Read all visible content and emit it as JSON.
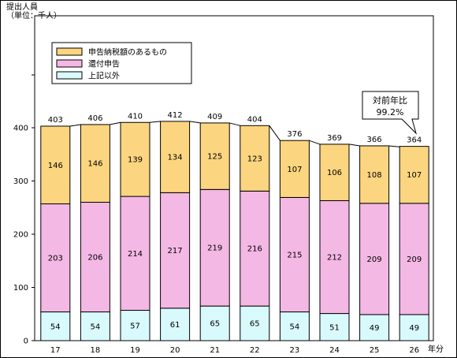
{
  "chart_data": {
    "type": "bar",
    "stacked": true,
    "ylabel_line1": "提出人員",
    "ylabel_line2": "（単位：千人）",
    "xunit": "年分",
    "ylim": [
      0,
      450
    ],
    "yticks": [
      0,
      100,
      200,
      300,
      400
    ],
    "categories": [
      "17",
      "18",
      "19",
      "20",
      "21",
      "22",
      "23",
      "24",
      "25",
      "26"
    ],
    "series": [
      {
        "name": "上記以外",
        "color": "#d9fafc",
        "values": [
          54,
          54,
          57,
          61,
          65,
          65,
          54,
          51,
          49,
          49
        ]
      },
      {
        "name": "還付申告",
        "color": "#f4b8e4",
        "values": [
          203,
          206,
          214,
          217,
          219,
          216,
          215,
          212,
          209,
          209
        ]
      },
      {
        "name": "申告納税額のあるもの",
        "color": "#fbd580",
        "values": [
          146,
          146,
          139,
          134,
          125,
          123,
          107,
          106,
          108,
          107
        ]
      }
    ],
    "totals": [
      403,
      406,
      410,
      412,
      409,
      404,
      376,
      369,
      366,
      364
    ],
    "legend_position": "top-left",
    "grid": false,
    "annotation": {
      "line1": "対前年比",
      "line2": "99.2%"
    }
  }
}
